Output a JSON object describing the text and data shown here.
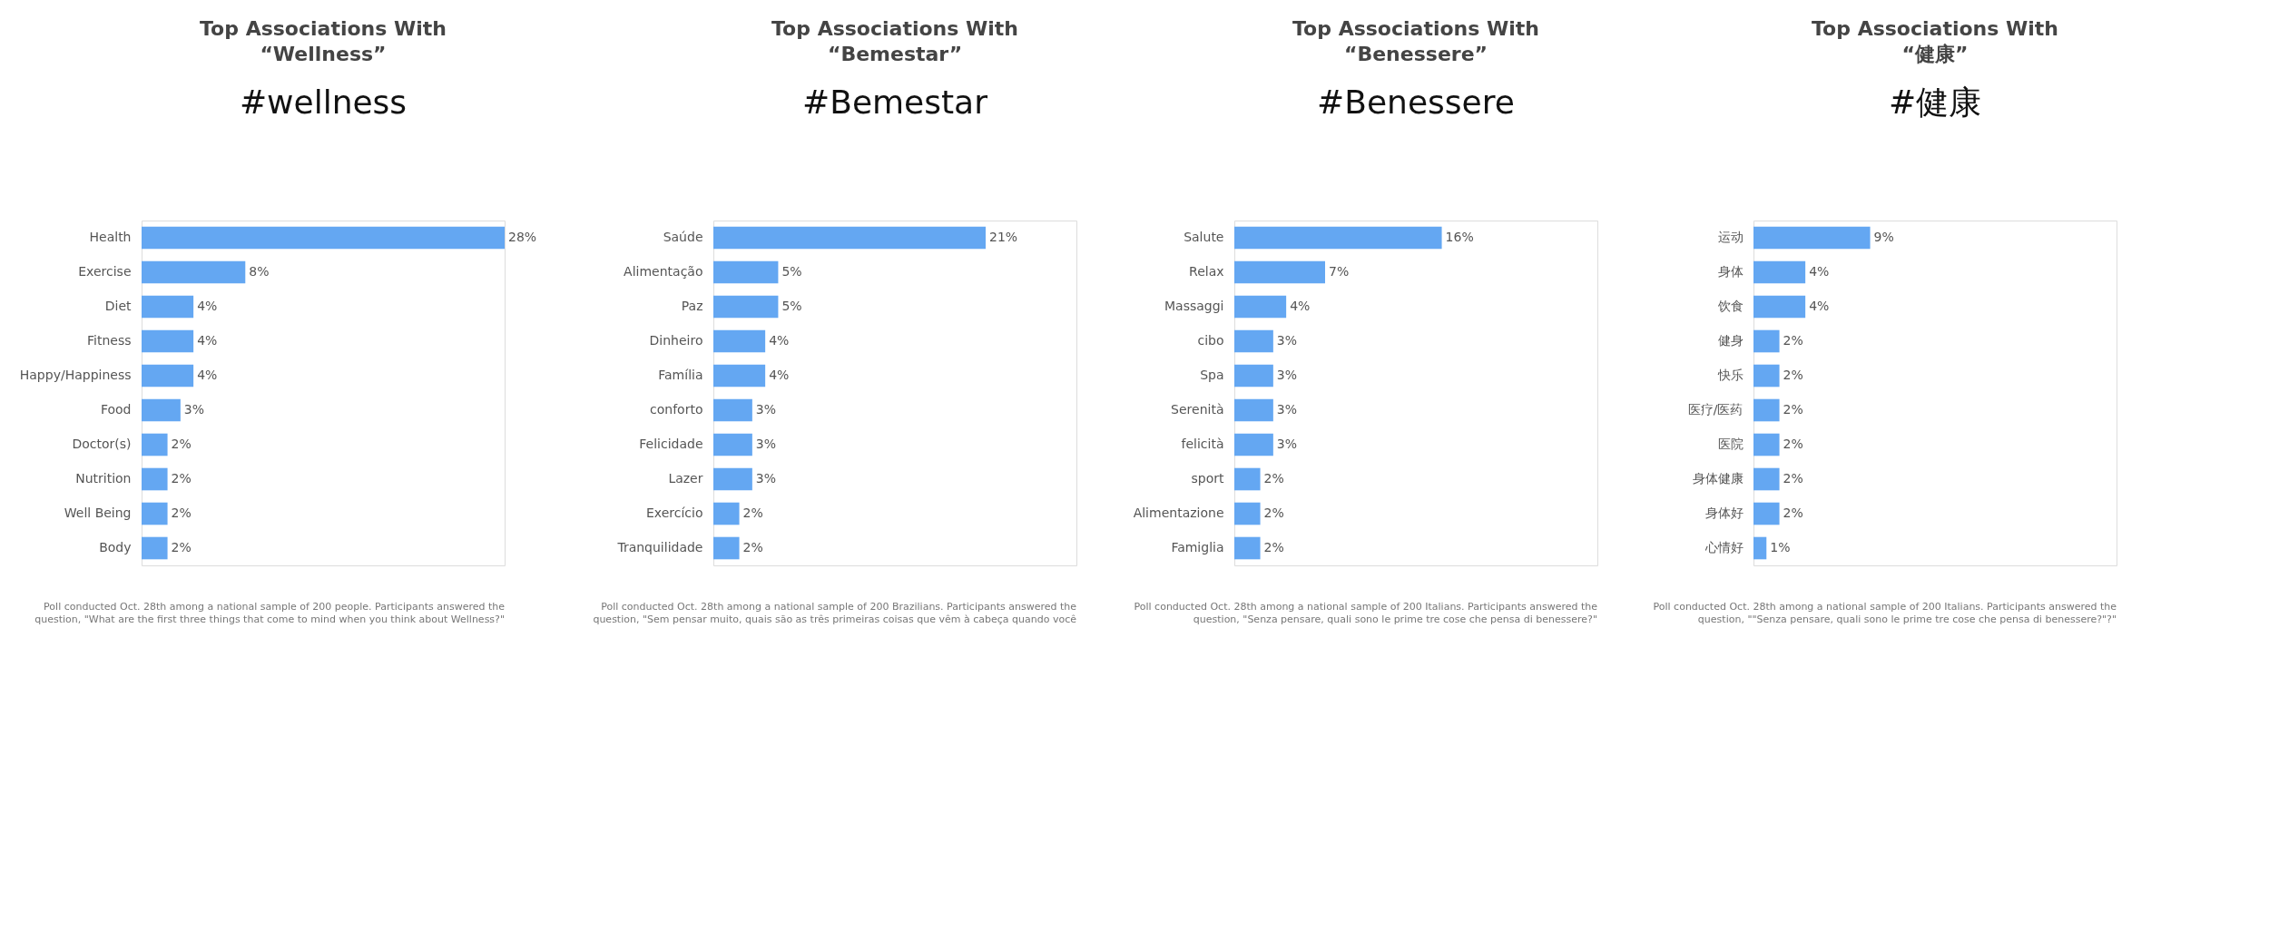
{
  "chart_data": [
    {
      "type": "bar",
      "orientation": "horizontal",
      "title": "Top Associations With\n“Wellness”",
      "categories": [
        "Health",
        "Exercise",
        "Diet",
        "Fitness",
        "Happy/Happiness",
        "Food",
        "Doctor(s)",
        "Nutrition",
        "Well Being",
        "Body"
      ],
      "values": [
        28,
        8,
        4,
        4,
        4,
        3,
        2,
        2,
        2,
        2
      ],
      "value_labels": [
        "28%",
        "8%",
        "4%",
        "4%",
        "4%",
        "3%",
        "2%",
        "2%",
        "2%",
        "2%"
      ],
      "color": "#64a7f2",
      "annotations": [
        "#wellness",
        "Poll conducted Oct. 28th among a national sample of 200 people. Participants answered the\nquestion, \"What are the first three things that come to mind when you think about Wellness?\""
      ]
    },
    {
      "type": "bar",
      "orientation": "horizontal",
      "title": "Top Associations With\n“Bemestar”",
      "categories": [
        "Saúde",
        "Alimentação",
        "Paz",
        "Dinheiro",
        "Família",
        "conforto",
        "Felicidade",
        "Lazer",
        "Exercício",
        "Tranquilidade"
      ],
      "values": [
        21,
        5,
        5,
        4,
        4,
        3,
        3,
        3,
        2,
        2
      ],
      "value_labels": [
        "21%",
        "5%",
        "5%",
        "4%",
        "4%",
        "3%",
        "3%",
        "3%",
        "2%",
        "2%"
      ],
      "color": "#64a7f2",
      "annotations": [
        "#Bemestar",
        "Poll conducted Oct. 28th among a national sample of 200 Brazilians. Participants answered the\nquestion, \"Sem pensar muito, quais são as três primeiras coisas que vêm à cabeça quando você"
      ]
    },
    {
      "type": "bar",
      "orientation": "horizontal",
      "title": "Top Associations With\n“Benessere”",
      "categories": [
        "Salute",
        "Relax",
        "Massaggi",
        "cibo",
        "Spa",
        "Serenità",
        "felicità",
        "sport",
        "Alimentazione",
        "Famiglia"
      ],
      "values": [
        16,
        7,
        4,
        3,
        3,
        3,
        3,
        2,
        2,
        2
      ],
      "value_labels": [
        "16%",
        "7%",
        "4%",
        "3%",
        "3%",
        "3%",
        "3%",
        "2%",
        "2%",
        "2%"
      ],
      "color": "#64a7f2",
      "annotations": [
        "#Benessere",
        "Poll conducted Oct. 28th among a national sample of 200 Italians. Participants answered the\nquestion, \"Senza pensare, quali sono le prime tre cose che pensa di benessere?\""
      ]
    },
    {
      "type": "bar",
      "orientation": "horizontal",
      "title": "Top Associations With\n“健康”",
      "categories": [
        "运动",
        "身体",
        "饮食",
        "健身",
        "快乐",
        "医疗/医药",
        "医院",
        "身体健康",
        "身体好",
        "心情好"
      ],
      "values": [
        9,
        4,
        4,
        2,
        2,
        2,
        2,
        2,
        2,
        1
      ],
      "value_labels": [
        "9%",
        "4%",
        "4%",
        "2%",
        "2%",
        "2%",
        "2%",
        "2%",
        "2%",
        "1%"
      ],
      "color": "#64a7f2",
      "annotations": [
        "#健康",
        "Poll conducted Oct. 28th among a national sample of 200 Italians. Participants answered the\nquestion, \"\"Senza pensare, quali sono le prime tre cose che pensa di benessere?\"?\""
      ]
    }
  ]
}
